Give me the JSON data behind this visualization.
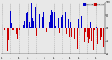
{
  "background_color": "#e8e8e8",
  "plot_bg_color": "#e8e8e8",
  "bar_above_color": "#0000cc",
  "bar_below_color": "#cc0000",
  "legend_above_label": "Above Avg",
  "legend_below_label": "Below Avg",
  "ylim": [
    20,
    100
  ],
  "yticks": [
    20,
    40,
    60,
    80,
    100
  ],
  "num_bars": 365,
  "avg": 60,
  "seed": 42,
  "grid_color": "#aaaaaa",
  "monthly_positions": [
    0,
    30,
    61,
    91,
    122,
    152,
    183,
    214,
    242,
    273,
    303,
    334
  ],
  "month_labels": [
    "7/1",
    "8/1",
    "9/1",
    "10/1",
    "11/1",
    "12/1",
    "1/1",
    "2/1",
    "3/1",
    "4/1",
    "5/1",
    "6/1"
  ]
}
